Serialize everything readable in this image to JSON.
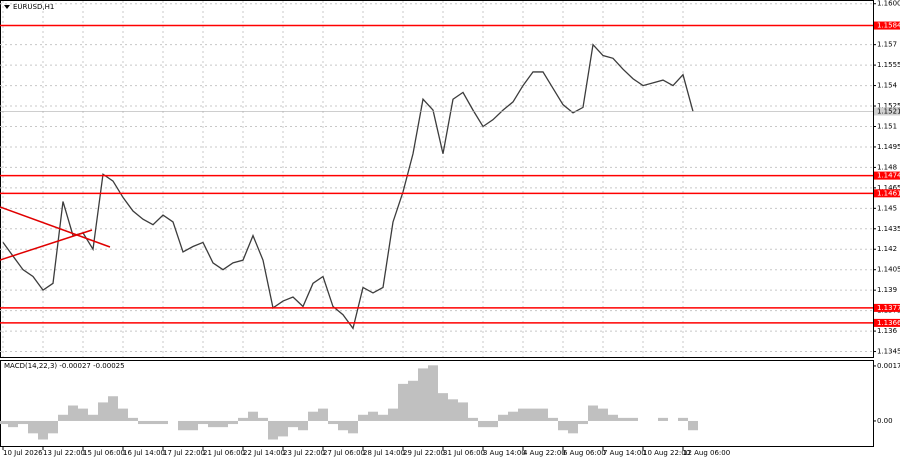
{
  "chart_data": [
    {
      "type": "line",
      "title": "EURUSD,H1",
      "color": "#3c3c3c",
      "categories": [
        "10 Jul 2026",
        null,
        null,
        null,
        "13 Jul 22:00",
        null,
        null,
        null,
        "15 Jul 06:00",
        null,
        null,
        null,
        "16 Jul 14:00",
        null,
        null,
        null,
        "17 Jul 22:00",
        null,
        null,
        null,
        "21 Jul 06:00",
        null,
        null,
        null,
        "22 Jul 14:00",
        null,
        null,
        null,
        "23 Jul 22:00",
        null,
        null,
        null,
        "27 Jul 06:00",
        null,
        null,
        null,
        "28 Jul 14:00",
        null,
        null,
        null,
        "29 Jul 22:00",
        null,
        null,
        null,
        "31 Jul 06:00",
        null,
        null,
        null,
        "3 Aug 14:00",
        null,
        null,
        null,
        "4 Aug 22:00",
        null,
        null,
        null,
        "6 Aug 06:00",
        null,
        null,
        null,
        "7 Aug 14:00",
        null,
        null,
        null,
        "10 Aug 22:00",
        null,
        null,
        null,
        "12 Aug 06:00",
        null
      ],
      "values": [
        1.1425,
        1.1415,
        1.1405,
        1.14,
        1.139,
        1.1395,
        1.1455,
        1.143,
        1.1432,
        1.142,
        1.1475,
        1.147,
        1.1458,
        1.1448,
        1.1442,
        1.1438,
        1.1445,
        1.144,
        1.1418,
        1.1422,
        1.1425,
        1.141,
        1.1405,
        1.141,
        1.1412,
        1.143,
        1.1412,
        1.1377,
        1.1382,
        1.1385,
        1.1378,
        1.1395,
        1.14,
        1.1378,
        1.1372,
        1.1362,
        1.1392,
        1.1388,
        1.1392,
        1.144,
        1.1462,
        1.149,
        1.153,
        1.1522,
        1.149,
        1.153,
        1.1535,
        1.1522,
        1.151,
        1.1515,
        1.1522,
        1.1528,
        1.154,
        1.155,
        1.155,
        1.1538,
        1.1526,
        1.152,
        1.1524,
        1.157,
        1.1562,
        1.156,
        1.1552,
        1.1545,
        1.154,
        1.1542,
        1.1544,
        1.154,
        1.1548,
        1.1521
      ],
      "ylim": [
        1.1341,
        1.1602
      ],
      "yticks": [
        {
          "value": 1.16,
          "label": "1.1600"
        },
        1.157,
        1.1555,
        1.154,
        1.1525,
        1.151,
        1.1495,
        1.148,
        1.1465,
        1.145,
        1.1435,
        1.142,
        1.1405,
        1.139,
        1.1375,
        1.136,
        1.1345
      ],
      "levels": [
        1.1584,
        1.1474,
        1.1461,
        1.1377,
        1.1366
      ],
      "level_color": "#ff0000",
      "grid": true
    },
    {
      "type": "bar",
      "title": "MACD(14,22,3) -0.00027 -0.00025",
      "color": "#c0c0c0",
      "values": [
        -0.0001,
        -0.0002,
        -0.0001,
        -0.0004,
        -0.0006,
        -0.0004,
        0.0002,
        0.0005,
        0.0004,
        0.0002,
        0.0006,
        0.0008,
        0.0004,
        0.0001,
        -0.0001,
        -0.0001,
        -0.0001,
        0,
        -0.0003,
        -0.0003,
        -0.0001,
        -0.0002,
        -0.0002,
        -0.0001,
        0.0001,
        0.0003,
        0.0001,
        -0.0006,
        -0.0005,
        -0.0002,
        -0.0003,
        0.0003,
        0.0004,
        -0.0001,
        -0.0003,
        -0.0004,
        0.0002,
        0.0003,
        0.0002,
        0.0004,
        0.0012,
        0.0013,
        0.0017,
        0.0018,
        0.0009,
        0.0007,
        0.0006,
        0.0001,
        -0.0002,
        -0.0002,
        0.0002,
        0.0003,
        0.0004,
        0.0004,
        0.0004,
        0.0001,
        -0.0003,
        -0.0004,
        -0.0001,
        0.0005,
        0.0004,
        0.0002,
        0.0001,
        0.0001,
        0,
        0,
        0.0001,
        0,
        0.0001,
        -0.0003
      ],
      "ylim": [
        -0.00081,
        0.00194
      ],
      "yticks": [
        0.00178,
        {
          "value": 0,
          "label": "0.00"
        }
      ]
    }
  ]
}
